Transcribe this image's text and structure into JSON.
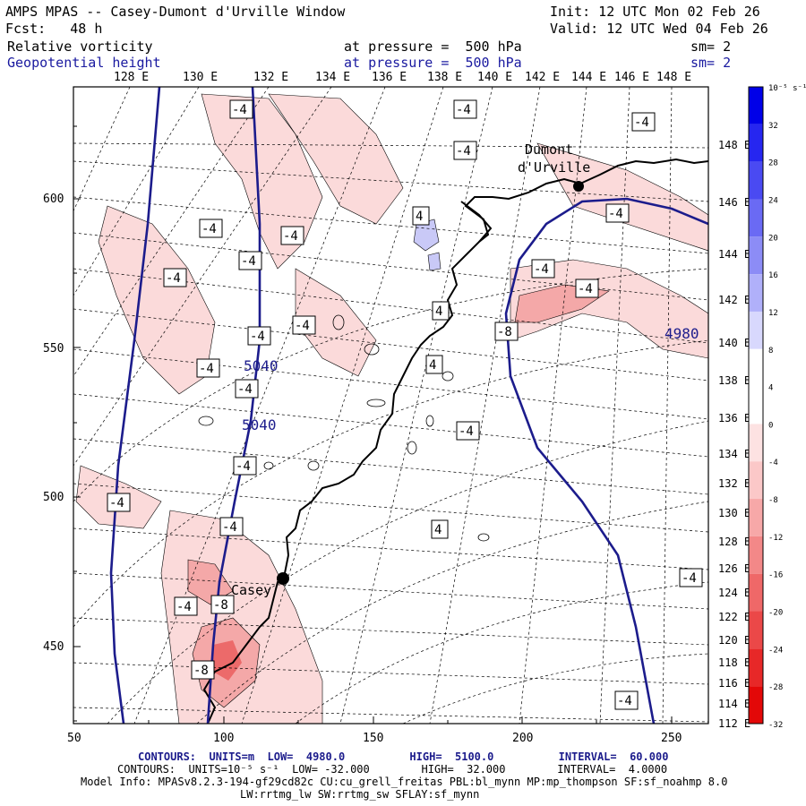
{
  "header": {
    "title": "AMPS MPAS -- Casey-Dumont d'Urville Window",
    "init": "Init: 12 UTC Mon 02 Feb 26",
    "fcst": "Fcst:   48 h",
    "valid": "Valid: 12 UTC Wed 04 Feb 26",
    "field1_name": "Relative vorticity",
    "field1_level": "at pressure =  500 hPa",
    "field1_smooth": "sm= 2",
    "field2_name": "Geopotential height",
    "field2_level": "at pressure =  500 hPa",
    "field2_smooth": "sm= 2"
  },
  "top_lon_labels": [
    "128 E",
    "130 E",
    "132 E",
    "134 E",
    "136 E",
    "138 E",
    "140 E",
    "142 E",
    "144 E",
    "146 E",
    "148 E"
  ],
  "right_lon_labels": [
    "148 E",
    "146 E",
    "144 E",
    "142 E",
    "140 E",
    "138 E",
    "136 E",
    "134 E",
    "132 E",
    "130 E",
    "128 E",
    "126 E",
    "124 E",
    "122 E",
    "120 E",
    "118 E",
    "116 E",
    "114 E",
    "112 E"
  ],
  "left_axis_labels": [
    "600",
    "550",
    "500",
    "450"
  ],
  "bottom_axis_labels": [
    "50",
    "100",
    "150",
    "200",
    "250"
  ],
  "places": [
    {
      "name": "Dumont",
      "name2": "d'Urville"
    },
    {
      "name": "Casey"
    }
  ],
  "contour_labels": {
    "vort_neg": "-4",
    "vort_pos": "4",
    "neg8": "-8",
    "height_5040": "5040",
    "height_4980": "4980"
  },
  "colorbar": {
    "unit": "10⁻⁵ s⁻¹",
    "labels": [
      "32",
      "28",
      "24",
      "20",
      "16",
      "12",
      "8",
      "4",
      "0",
      "-4",
      "-8",
      "-12",
      "-16",
      "-20",
      "-24",
      "-28",
      "-32"
    ],
    "colors": [
      "#0000e8",
      "#2626f0",
      "#4a4af2",
      "#6a6af4",
      "#8c8cf6",
      "#b0b0fa",
      "#d8d8fd",
      "#ffffff",
      "#ffffff",
      "#fde2e2",
      "#fbc8c8",
      "#f7a8a8",
      "#f38888",
      "#ef6868",
      "#eb4848",
      "#e72828",
      "#e30808"
    ]
  },
  "footer": {
    "line1": "CONTOURS:  UNITS=m  LOW=  4980.0          HIGH=  5100.0          INTERVAL=  60.000",
    "line2": "CONTOURS:  UNITS=10⁻⁵ s⁻¹  LOW= -32.000        HIGH=  32.000        INTERVAL=  4.0000",
    "line3": "Model Info: MPASv8.2.3-194-gf29cd82c CU:cu_grell_freitas PBL:bl_mynn MP:mp_thompson SF:sf_noahmp 8.0",
    "line4": "LW:rrtmg_lw SW:rrtmg_sw SFLAY:sf_mynn"
  }
}
